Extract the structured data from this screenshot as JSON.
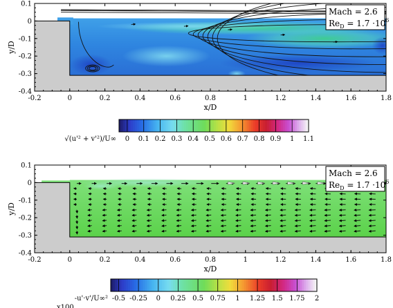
{
  "chart_data": [
    {
      "type": "heatmap",
      "title": "",
      "xlabel": "x/D",
      "ylabel": "y/D",
      "xlim": [
        -0.2,
        1.8
      ],
      "ylim": [
        -0.4,
        0.1
      ],
      "x_ticks": [
        "-0.2",
        "0",
        "0.2",
        "0.4",
        "0.6",
        "0.8",
        "1",
        "1.2",
        "1.4",
        "1.6",
        "1.8"
      ],
      "y_ticks": [
        "0.1",
        "0",
        "-0.1",
        "-0.2",
        "-0.3",
        "-0.4"
      ],
      "annotation": {
        "line1": "Mach = 2.6",
        "line2_base": "Re",
        "line2_sub": "D",
        "line2_rest": " = 1.7 ·10",
        "line2_exp": "6"
      },
      "geometry": {
        "cavity_x": [
          0,
          1.8
        ],
        "cavity_depth": -0.31,
        "plate_y": 0
      },
      "colorbar": {
        "label": "√(u'² + v'²)/U∞",
        "ticks": [
          "0",
          "0.1",
          "0.2",
          "0.3",
          "0.4",
          "0.5",
          "0.6",
          "0.7",
          "0.8",
          "0.9",
          "1",
          "1.1"
        ],
        "range": [
          -0.05,
          1.1
        ]
      },
      "field": "turbulence intensity",
      "vortex_center": [
        0.13,
        -0.27
      ]
    },
    {
      "type": "heatmap",
      "title": "",
      "xlabel": "x/D",
      "ylabel": "y/D",
      "xlim": [
        -0.2,
        1.8
      ],
      "ylim": [
        -0.4,
        0.1
      ],
      "x_ticks": [
        "-0.2",
        "0",
        "0.2",
        "0.4",
        "0.6",
        "0.8",
        "1",
        "1.2",
        "1.4",
        "1.6",
        "1.8"
      ],
      "y_ticks": [
        "0.1",
        "0",
        "-0.1",
        "-0.2",
        "-0.3",
        "-0.4"
      ],
      "annotation": {
        "line1": "Mach = 2.6",
        "line2_base": "Re",
        "line2_sub": "D",
        "line2_rest": " = 1.7 ·10",
        "line2_exp": "6"
      },
      "geometry": {
        "cavity_x": [
          0,
          1.8
        ],
        "cavity_depth": -0.31,
        "plate_y": 0
      },
      "colorbar": {
        "label": "-u'·v'/U∞²",
        "scale_note": "x100",
        "ticks": [
          "-0.5",
          "-0.25",
          "0",
          "0.25",
          "0.5",
          "0.75",
          "1",
          "1.25",
          "1.5",
          "1.75",
          "2"
        ],
        "range": [
          -0.6,
          2.0
        ]
      },
      "field": "Reynolds shear stress"
    }
  ]
}
